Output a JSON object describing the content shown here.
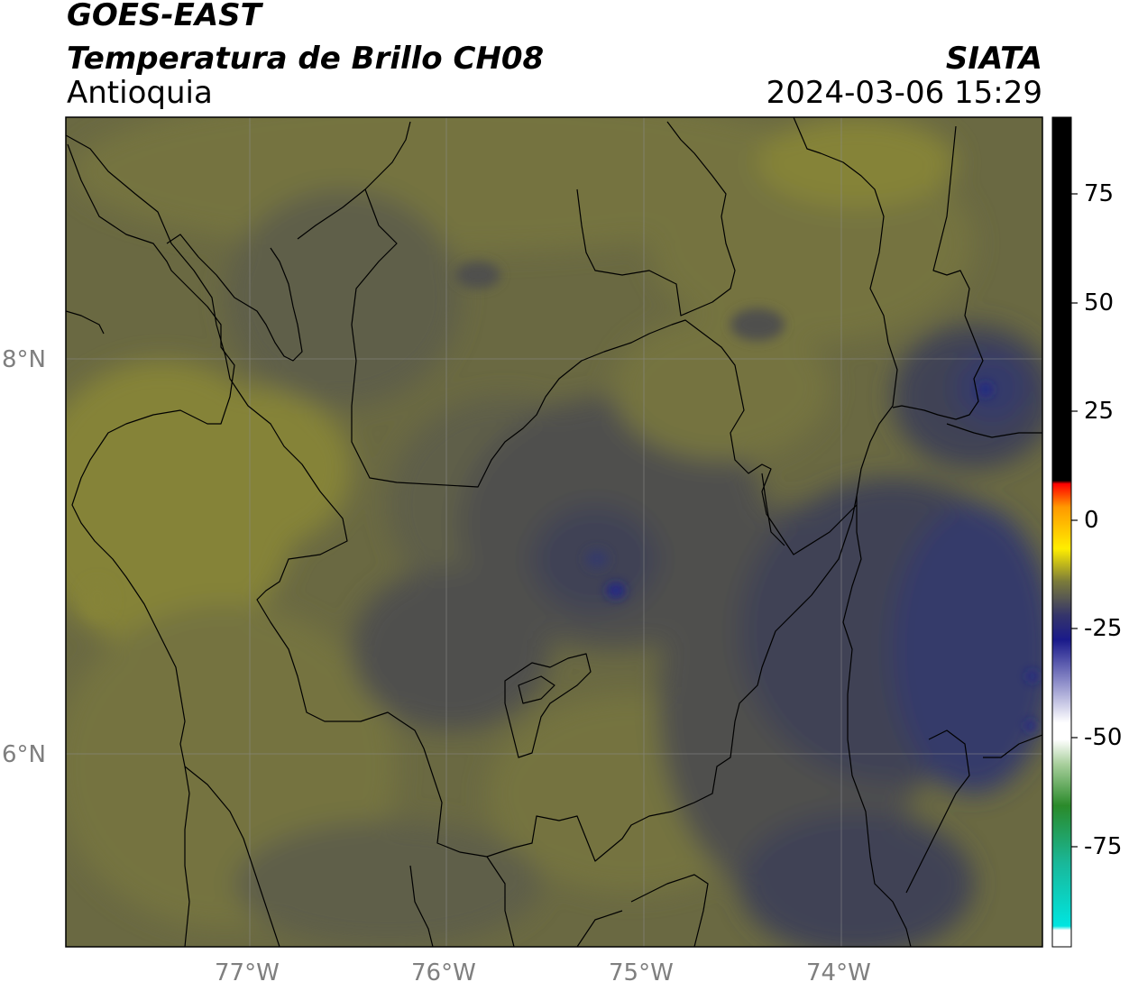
{
  "title": {
    "line1": "GOES-EAST",
    "line2": "Temperatura de Brillo CH08",
    "line3": "Antioquia",
    "agency": "SIATA",
    "datetime": "2024-03-06 15:29"
  },
  "axes": {
    "lat_labels": [
      "8°N",
      "6°N"
    ],
    "lon_labels": [
      "77°W",
      "76°W",
      "75°W",
      "74°W"
    ]
  },
  "colorbar": {
    "ticks": [
      "75",
      "50",
      "25",
      "0",
      "-25",
      "-50",
      "-75"
    ],
    "colors": {
      "warm": "#000000",
      "red": "#ff0000",
      "orange": "#ff9900",
      "yellow": "#ffee00",
      "olive": "#7a7a3a",
      "navy": "#1a1a8a",
      "white": "#ffffff",
      "green": "#2a8a2a",
      "cyan": "#00e5e0"
    }
  },
  "map_colors": {
    "olive_light": "#858338",
    "olive": "#74733f",
    "olive_dark": "#5f5e48",
    "gray": "#50504e",
    "slate": "#3f4254",
    "indigo": "#363a6a",
    "navy": "#1a2090"
  }
}
